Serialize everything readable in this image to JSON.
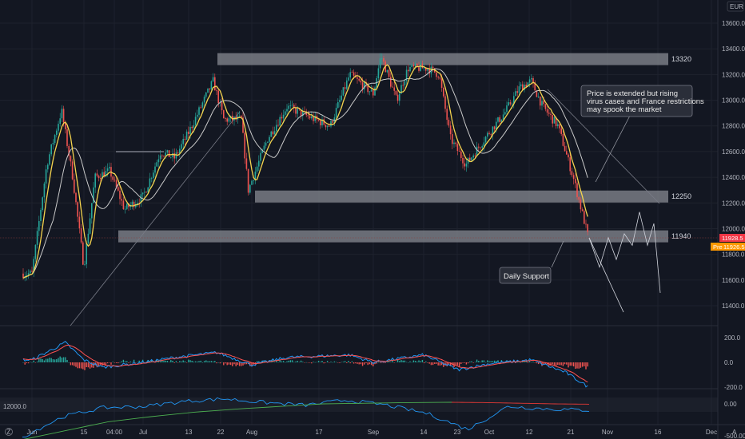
{
  "currency": "EUR",
  "chart_data": [
    {
      "type": "candlestick",
      "instrument_currency": "EUR",
      "ylim": [
        11300,
        13700
      ],
      "y_ticks": [
        13600,
        13400,
        13200,
        13000,
        12800,
        12600,
        12400,
        12200,
        12000,
        11800,
        11600,
        11400
      ],
      "y_tick_labels": [
        "13600.0",
        "13400.0",
        "13200.0",
        "13000.0",
        "12800.0",
        "12600.0",
        "12400.0",
        "12200.0",
        "12000.0",
        "11800.0",
        "11600.0",
        "11400.0"
      ],
      "x_tick_labels": [
        "Jun",
        "15",
        "04:00",
        "Jul",
        "13",
        "22",
        "Aug",
        "17",
        "Sep",
        "14",
        "23",
        "Oct",
        "12",
        "21",
        "Nov",
        "16",
        "Dec"
      ],
      "price_path": [
        [
          "Jun",
          11650
        ],
        [
          "Jun 5",
          12500
        ],
        [
          "Jun 9",
          12920
        ],
        [
          "Jun 12",
          12400
        ],
        [
          "Jun 15",
          11700
        ],
        [
          "Jun 18",
          12400
        ],
        [
          "Jun 22",
          12450
        ],
        [
          "Jun 26",
          12150
        ],
        [
          "Jul",
          12250
        ],
        [
          "Jul 6",
          12600
        ],
        [
          "Jul 10",
          12550
        ],
        [
          "Jul 14",
          12750
        ],
        [
          "Jul 21",
          13150
        ],
        [
          "Jul 24",
          12850
        ],
        [
          "Jul 29",
          12850
        ],
        [
          "Jul 31",
          12300
        ],
        [
          "Aug 5",
          12700
        ],
        [
          "Aug 10",
          12950
        ],
        [
          "Aug 17",
          12850
        ],
        [
          "Aug 21",
          12800
        ],
        [
          "Aug 26",
          13200
        ],
        [
          "Sep",
          13050
        ],
        [
          "Sep 3",
          13350
        ],
        [
          "Sep 7",
          13000
        ],
        [
          "Sep 10",
          13250
        ],
        [
          "Sep 15",
          13250
        ],
        [
          "Sep 18",
          13200
        ],
        [
          "Sep 21",
          12700
        ],
        [
          "Sep 25",
          12500
        ],
        [
          "Oct",
          12750
        ],
        [
          "Oct 5",
          12900
        ],
        [
          "Oct 9",
          13100
        ],
        [
          "Oct 12",
          13150
        ],
        [
          "Oct 15",
          12950
        ],
        [
          "Oct 19",
          12800
        ],
        [
          "Oct 21",
          12600
        ],
        [
          "Oct 23",
          12400
        ],
        [
          "Oct 27",
          11928.5
        ]
      ],
      "horizontal_zones": [
        {
          "label": "13320",
          "value": 13320
        },
        {
          "label": "12250",
          "value": 12250
        },
        {
          "label": "11940",
          "value": 11940
        }
      ],
      "last_price": {
        "label": "11928.5",
        "prev_label": "Pre",
        "prev_value_label": "11926.5",
        "color": "#f23645",
        "prev_color": "#ff9800"
      },
      "projection_path": [
        11928.5,
        11700,
        11930,
        11760,
        11960,
        11870,
        12130,
        11870,
        12040,
        11500
      ],
      "projection_path_2": [
        11928.5,
        11350
      ],
      "annotations": [
        {
          "id": "price-callout",
          "lines": [
            "Price is extended but rising",
            "virus cases and France restrictions",
            "may spook the market"
          ]
        },
        {
          "id": "support-callout",
          "lines": [
            "Daily Support"
          ]
        }
      ],
      "overlays": {
        "moving_average_fast_color": "#f5d44f",
        "moving_average_slow_color": "#c9c9c9"
      },
      "up_color": "#26a69a",
      "down_color": "#ef5350"
    },
    {
      "type": "histogram",
      "indicator": "MACD",
      "ylim": [
        -220,
        230
      ],
      "y_ticks": [
        200,
        0,
        -200
      ],
      "y_tick_labels": [
        "200.0",
        "0.0",
        "-200.0"
      ],
      "macd_line_color": "#2196f3",
      "signal_line_color": "#ff5252",
      "approx_path": [
        [
          "Jun",
          20
        ],
        [
          "Jun 10",
          160
        ],
        [
          "Jun 15",
          20
        ],
        [
          "Jun 20",
          -40
        ],
        [
          "Jul",
          0
        ],
        [
          "Jul 10",
          40
        ],
        [
          "Jul 22",
          80
        ],
        [
          "Aug",
          -20
        ],
        [
          "Aug 10",
          40
        ],
        [
          "Aug 26",
          60
        ],
        [
          "Sep",
          0
        ],
        [
          "Sep 14",
          60
        ],
        [
          "Sep 23",
          -60
        ],
        [
          "Oct",
          -10
        ],
        [
          "Oct 12",
          20
        ],
        [
          "Oct 21",
          -80
        ],
        [
          "Oct 27",
          -200
        ]
      ],
      "histogram_up_color": "#26a69a",
      "histogram_down_color": "#ef5350"
    },
    {
      "type": "line",
      "indicator": "oscillator",
      "ylim": [
        -700,
        150
      ],
      "y_ticks": [
        0,
        -500
      ],
      "y_tick_labels": [
        "0.00",
        "-500.00"
      ],
      "left_label": "12000.0",
      "series": [
        {
          "color": "#2196f3",
          "values": [
            -520,
            -200,
            -60,
            -40,
            40,
            80,
            20,
            -20,
            60,
            -20,
            -150,
            -400,
            -40,
            -80,
            -100
          ]
        },
        {
          "color": "#4caf50",
          "values": [
            -560,
            -420,
            -280,
            -200,
            -130,
            -80,
            -40,
            0,
            10,
            20,
            25
          ]
        },
        {
          "color": "#e53935",
          "values": [
            25,
            20,
            10,
            0,
            -5
          ]
        }
      ]
    }
  ],
  "footer_logo": "Z",
  "footer_axis_letter": "A"
}
